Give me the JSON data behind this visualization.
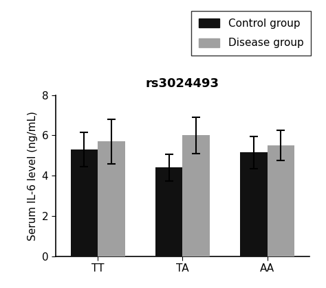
{
  "title": "rs3024493",
  "ylabel": "Serum IL-6 level (ng/mL)",
  "categories": [
    "TT",
    "TA",
    "AA"
  ],
  "control_values": [
    5.3,
    4.4,
    5.15
  ],
  "disease_values": [
    5.7,
    6.0,
    5.5
  ],
  "control_errors": [
    0.85,
    0.65,
    0.8
  ],
  "disease_errors": [
    1.1,
    0.9,
    0.75
  ],
  "control_color": "#111111",
  "disease_color": "#a0a0a0",
  "bar_width": 0.32,
  "ylim": [
    0,
    8
  ],
  "yticks": [
    0,
    2,
    4,
    6,
    8
  ],
  "legend_labels": [
    "Control group",
    "Disease group"
  ],
  "group_positions": [
    1,
    2,
    3
  ],
  "title_fontsize": 13,
  "label_fontsize": 11,
  "tick_fontsize": 11,
  "legend_fontsize": 11,
  "error_capsize": 4,
  "error_linewidth": 1.5,
  "background_color": "#ffffff"
}
